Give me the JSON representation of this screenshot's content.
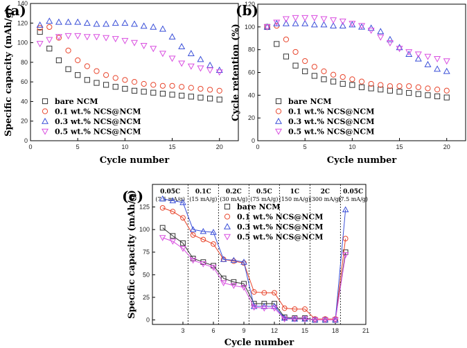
{
  "chart_data": [
    {
      "type": "scatter",
      "panel_label": "(a)",
      "title": "",
      "xlabel": "Cycle number",
      "ylabel": "Specific capacity (mAh/g)",
      "xlim": [
        0,
        22
      ],
      "ylim": [
        0,
        140
      ],
      "xticks": [
        0,
        5,
        10,
        15,
        20
      ],
      "yticks": [
        0,
        20,
        40,
        60,
        80,
        100,
        120,
        140
      ],
      "legend_position": "lower-left",
      "x": [
        1,
        2,
        3,
        4,
        5,
        6,
        7,
        8,
        9,
        10,
        11,
        12,
        13,
        14,
        15,
        16,
        17,
        18,
        19,
        20
      ],
      "series": [
        {
          "name": "bare NCM",
          "marker": "square",
          "color": "#333333",
          "values": [
            111,
            94,
            82,
            73,
            67,
            62,
            59,
            57,
            55,
            53,
            51,
            50,
            49,
            48,
            47,
            46,
            45,
            44,
            43,
            42
          ]
        },
        {
          "name": "0.1 wt.% NCS@NCM",
          "marker": "circle",
          "color": "#e8452c",
          "values": [
            115,
            116,
            105,
            92,
            82,
            76,
            71,
            67,
            64,
            62,
            60,
            58,
            57,
            56,
            56,
            55,
            54,
            53,
            52,
            51
          ]
        },
        {
          "name": "0.3 wt.% NCS@NCM",
          "marker": "triangle-up",
          "color": "#3a4fd8",
          "values": [
            118,
            122,
            121,
            121,
            121,
            120,
            119,
            119,
            120,
            120,
            119,
            117,
            116,
            114,
            106,
            96,
            89,
            83,
            77,
            72
          ]
        },
        {
          "name": "0.5 wt.% NCS@NCM",
          "marker": "triangle-down",
          "color": "#d94ee0",
          "values": [
            99,
            103,
            106,
            107,
            107,
            106,
            106,
            105,
            104,
            102,
            100,
            97,
            94,
            89,
            84,
            79,
            76,
            74,
            72,
            70
          ]
        }
      ]
    },
    {
      "type": "scatter",
      "panel_label": "(b)",
      "title": "",
      "xlabel": "Cycle number",
      "ylabel": "Cycle retention (%)",
      "xlim": [
        0,
        22
      ],
      "ylim": [
        0,
        120
      ],
      "xticks": [
        0,
        5,
        10,
        15,
        20
      ],
      "yticks": [
        0,
        20,
        40,
        60,
        80,
        100,
        120
      ],
      "legend_position": "lower-left",
      "x": [
        1,
        2,
        3,
        4,
        5,
        6,
        7,
        8,
        9,
        10,
        11,
        12,
        13,
        14,
        15,
        16,
        17,
        18,
        19,
        20
      ],
      "series": [
        {
          "name": "bare NCM",
          "marker": "square",
          "color": "#333333",
          "values": [
            100,
            85,
            74,
            66,
            61,
            57,
            54,
            52,
            50,
            49,
            47,
            46,
            45,
            44,
            43,
            42,
            41,
            40,
            39,
            38
          ]
        },
        {
          "name": "0.1 wt.% NCS@NCM",
          "marker": "circle",
          "color": "#e8452c",
          "values": [
            100,
            101,
            89,
            78,
            70,
            65,
            61,
            58,
            56,
            54,
            52,
            50,
            49,
            48,
            48,
            48,
            47,
            46,
            45,
            44
          ]
        },
        {
          "name": "0.3 wt.% NCS@NCM",
          "marker": "triangle-up",
          "color": "#3a4fd8",
          "values": [
            100,
            103,
            103,
            103,
            103,
            102,
            102,
            101,
            101,
            102,
            100,
            99,
            96,
            89,
            82,
            76,
            72,
            67,
            63,
            61
          ]
        },
        {
          "name": "0.5 wt.% NCS@NCM",
          "marker": "triangle-down",
          "color": "#d94ee0",
          "values": [
            100,
            104,
            107,
            108,
            108,
            108,
            107,
            106,
            105,
            103,
            101,
            97,
            91,
            86,
            81,
            78,
            76,
            74,
            72,
            70
          ]
        }
      ]
    },
    {
      "type": "line",
      "panel_label": "(c)",
      "title": "",
      "xlabel": "Cycle number",
      "ylabel": "Specific capacity (mAh/g)",
      "xlim": [
        0,
        21
      ],
      "ylim": [
        -5,
        150
      ],
      "xticks": [
        3,
        6,
        9,
        12,
        15,
        18,
        21
      ],
      "yticks": [
        0,
        25,
        50,
        75,
        100,
        125
      ],
      "legend_position": "top-right",
      "rate_boundaries": [
        3.5,
        6.5,
        9.5,
        12.5,
        15.5,
        18.5
      ],
      "rate_labels": [
        {
          "rate": "0.05C",
          "current": "(7.5 mA/g)"
        },
        {
          "rate": "0.1C",
          "current": "(15 mA/g)"
        },
        {
          "rate": "0.2C",
          "current": "(30 mA/g)"
        },
        {
          "rate": "0.5C",
          "current": "(75 mA/g)"
        },
        {
          "rate": "1C",
          "current": "(150 mA/g)"
        },
        {
          "rate": "2C",
          "current": "(300 mA/g)"
        },
        {
          "rate": "0.05C",
          "current": "(7.5 mA/g)"
        }
      ],
      "x": [
        1,
        2,
        3,
        4,
        5,
        6,
        7,
        8,
        9,
        10,
        11,
        12,
        13,
        14,
        15,
        16,
        17,
        18,
        19
      ],
      "series": [
        {
          "name": "bare NCM",
          "marker": "square",
          "color": "#333333",
          "values": [
            102,
            93,
            85,
            68,
            64,
            60,
            46,
            42,
            40,
            18,
            18,
            18,
            3,
            2,
            2,
            0,
            0,
            0,
            75
          ]
        },
        {
          "name": "0.1 wt.% NCS@NCM",
          "marker": "circle",
          "color": "#e8452c",
          "values": [
            124,
            120,
            113,
            94,
            89,
            84,
            67,
            65,
            63,
            31,
            30,
            30,
            13,
            12,
            12,
            1,
            1,
            1,
            90
          ]
        },
        {
          "name": "0.3 wt.% NCS@NCM",
          "marker": "triangle-up",
          "color": "#3a4fd8",
          "values": [
            134,
            132,
            130,
            100,
            98,
            97,
            67,
            66,
            64,
            15,
            15,
            15,
            2,
            1,
            1,
            0,
            0,
            0,
            122
          ]
        },
        {
          "name": "0.5 wt.% NCS@NCM",
          "marker": "triangle-down",
          "color": "#d94ee0",
          "values": [
            91,
            87,
            79,
            66,
            62,
            58,
            41,
            38,
            36,
            14,
            13,
            13,
            1,
            1,
            1,
            0,
            0,
            0,
            72
          ]
        }
      ]
    }
  ]
}
